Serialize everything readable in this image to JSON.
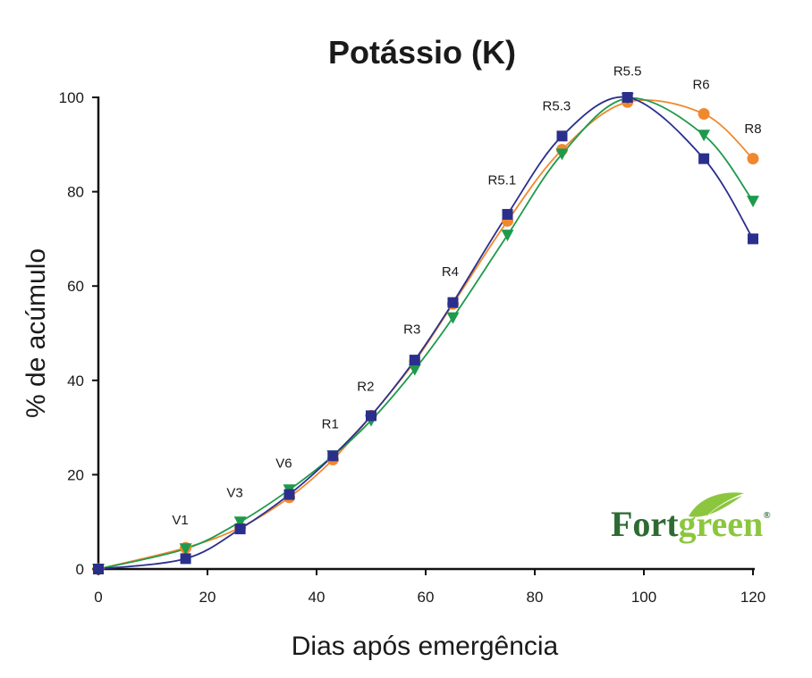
{
  "chart_data": {
    "type": "line",
    "title": "Potássio (K)",
    "xlabel": "Dias após emergência",
    "ylabel": "% de acúmulo",
    "xlim": [
      0,
      120
    ],
    "ylim": [
      0,
      100
    ],
    "xticks": [
      0,
      20,
      40,
      60,
      80,
      100,
      120
    ],
    "yticks": [
      0,
      20,
      40,
      60,
      80,
      100
    ],
    "grid": false,
    "colors": {
      "orange": "#f0892e",
      "green": "#1e9a4c",
      "blue": "#2b2f8c"
    },
    "series": [
      {
        "marker": "circle",
        "color": "#f0892e",
        "x": [
          0,
          16,
          26,
          35,
          43,
          50,
          58,
          65,
          75,
          85,
          97,
          111,
          120
        ],
        "y": [
          0,
          4.5,
          8.8,
          15.2,
          23.2,
          32.5,
          44.0,
          56.2,
          73.8,
          88.9,
          99.0,
          96.5,
          87.0
        ]
      },
      {
        "marker": "triangle-down",
        "color": "#1e9a4c",
        "x": [
          0,
          16,
          26,
          35,
          43,
          50,
          58,
          65,
          75,
          85,
          97,
          111,
          120
        ],
        "y": [
          0,
          4.3,
          10.0,
          16.8,
          24.0,
          31.5,
          42.3,
          53.3,
          70.8,
          88.0,
          99.8,
          92.0,
          78.0
        ]
      },
      {
        "marker": "square",
        "color": "#2b2f8c",
        "x": [
          0,
          16,
          26,
          35,
          43,
          50,
          58,
          65,
          75,
          85,
          97,
          111,
          120
        ],
        "y": [
          0,
          2.2,
          8.5,
          15.8,
          24.0,
          32.5,
          44.3,
          56.5,
          75.2,
          91.8,
          100.0,
          87.0,
          70.0
        ]
      }
    ],
    "annotations": [
      {
        "text": "V1",
        "x": 15,
        "y": 9.5
      },
      {
        "text": "V3",
        "x": 25,
        "y": 15.2
      },
      {
        "text": "V6",
        "x": 34,
        "y": 21.5
      },
      {
        "text": "R1",
        "x": 42.5,
        "y": 29.8
      },
      {
        "text": "R2",
        "x": 49,
        "y": 37.8
      },
      {
        "text": "R3",
        "x": 57.5,
        "y": 49.9
      },
      {
        "text": "R4",
        "x": 64.5,
        "y": 62.1
      },
      {
        "text": "R5.1",
        "x": 74,
        "y": 81.5
      },
      {
        "text": "R5.3",
        "x": 84,
        "y": 97.3
      },
      {
        "text": "R5.5",
        "x": 97,
        "y": 104.6
      },
      {
        "text": "R6",
        "x": 110.5,
        "y": 101.8
      },
      {
        "text": "R8",
        "x": 120,
        "y": 92.4
      }
    ]
  },
  "logo": {
    "text_part1": "Fort",
    "text_part2": "green",
    "mark": "®",
    "color_dark": "#2e6b34",
    "color_light": "#8cc63f"
  }
}
